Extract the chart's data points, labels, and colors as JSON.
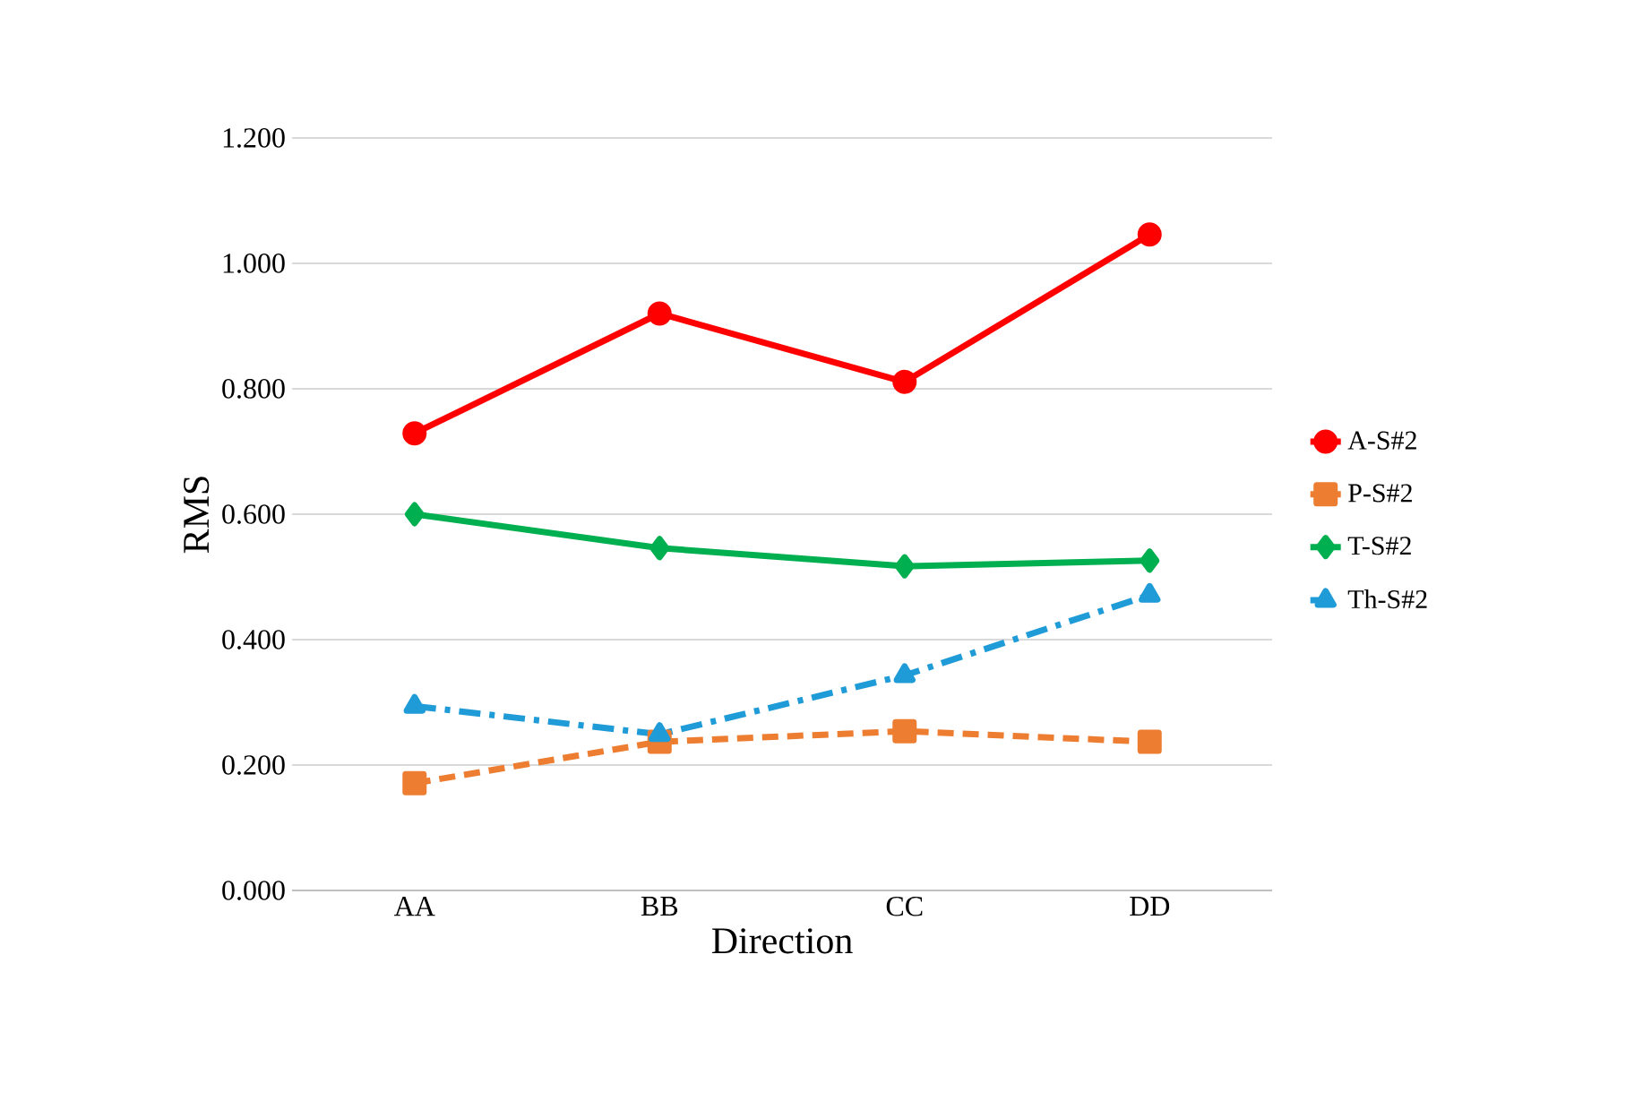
{
  "chart_data": {
    "type": "line",
    "xlabel": "Direction",
    "ylabel": "RMS",
    "categories": [
      "AA",
      "BB",
      "CC",
      "DD"
    ],
    "ylim": [
      0,
      1.2
    ],
    "yticks": [
      {
        "value": 0,
        "label": "0.000"
      },
      {
        "value": 0.2,
        "label": "0.200"
      },
      {
        "value": 0.4,
        "label": "0.400"
      },
      {
        "value": 0.6,
        "label": "0.600"
      },
      {
        "value": 0.8,
        "label": "0.800"
      },
      {
        "value": 1.0,
        "label": "1.000"
      },
      {
        "value": 1.2,
        "label": "1.200"
      }
    ],
    "grid": "y",
    "legend": "right",
    "series": [
      {
        "name": "A-S#2",
        "color": "#ff0000",
        "marker": "circle",
        "line_style": "solid",
        "values": [
          0.729,
          0.92,
          0.811,
          1.046
        ]
      },
      {
        "name": "P-S#2",
        "color": "#ed7d31",
        "marker": "square",
        "line_style": "dashed",
        "values": [
          0.171,
          0.237,
          0.254,
          0.237
        ]
      },
      {
        "name": "T-S#2",
        "color": "#00b050",
        "marker": "diamond",
        "line_style": "solid",
        "values": [
          0.6,
          0.546,
          0.517,
          0.526
        ]
      },
      {
        "name": "Th-S#2",
        "color": "#1f9bd7",
        "marker": "triangle",
        "line_style": "dashdot",
        "values": [
          0.294,
          0.249,
          0.343,
          0.471
        ]
      }
    ]
  }
}
